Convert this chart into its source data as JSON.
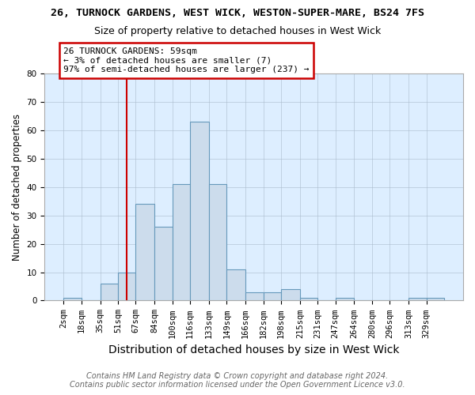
{
  "title1": "26, TURNOCK GARDENS, WEST WICK, WESTON-SUPER-MARE, BS24 7FS",
  "title2": "Size of property relative to detached houses in West Wick",
  "xlabel": "Distribution of detached houses by size in West Wick",
  "ylabel": "Number of detached properties",
  "bin_edges": [
    2,
    18,
    35,
    51,
    67,
    84,
    100,
    116,
    133,
    149,
    166,
    182,
    198,
    215,
    231,
    247,
    264,
    280,
    296,
    313,
    329
  ],
  "bin_labels": [
    "2sqm",
    "18sqm",
    "35sqm",
    "51sqm",
    "67sqm",
    "84sqm",
    "100sqm",
    "116sqm",
    "133sqm",
    "149sqm",
    "166sqm",
    "182sqm",
    "198sqm",
    "215sqm",
    "231sqm",
    "247sqm",
    "264sqm",
    "280sqm",
    "296sqm",
    "313sqm",
    "329sqm"
  ],
  "counts": [
    1,
    0,
    6,
    10,
    34,
    26,
    41,
    63,
    41,
    11,
    3,
    3,
    4,
    1,
    0,
    1,
    0,
    0,
    0,
    1,
    1
  ],
  "bar_color": "#ccdcec",
  "bar_edge_color": "#6699bb",
  "property_line_x": 59,
  "property_line_color": "#cc0000",
  "ylim": [
    0,
    80
  ],
  "yticks": [
    0,
    10,
    20,
    30,
    40,
    50,
    60,
    70,
    80
  ],
  "annotation_text": "26 TURNOCK GARDENS: 59sqm\n← 3% of detached houses are smaller (7)\n97% of semi-detached houses are larger (237) →",
  "annotation_box_color": "#ffffff",
  "annotation_border_color": "#cc0000",
  "footer1": "Contains HM Land Registry data © Crown copyright and database right 2024.",
  "footer2": "Contains public sector information licensed under the Open Government Licence v3.0.",
  "title1_fontsize": 9.5,
  "title2_fontsize": 9,
  "xlabel_fontsize": 10,
  "ylabel_fontsize": 8.5,
  "tick_fontsize": 7.5,
  "annotation_fontsize": 8,
  "footer_fontsize": 7
}
